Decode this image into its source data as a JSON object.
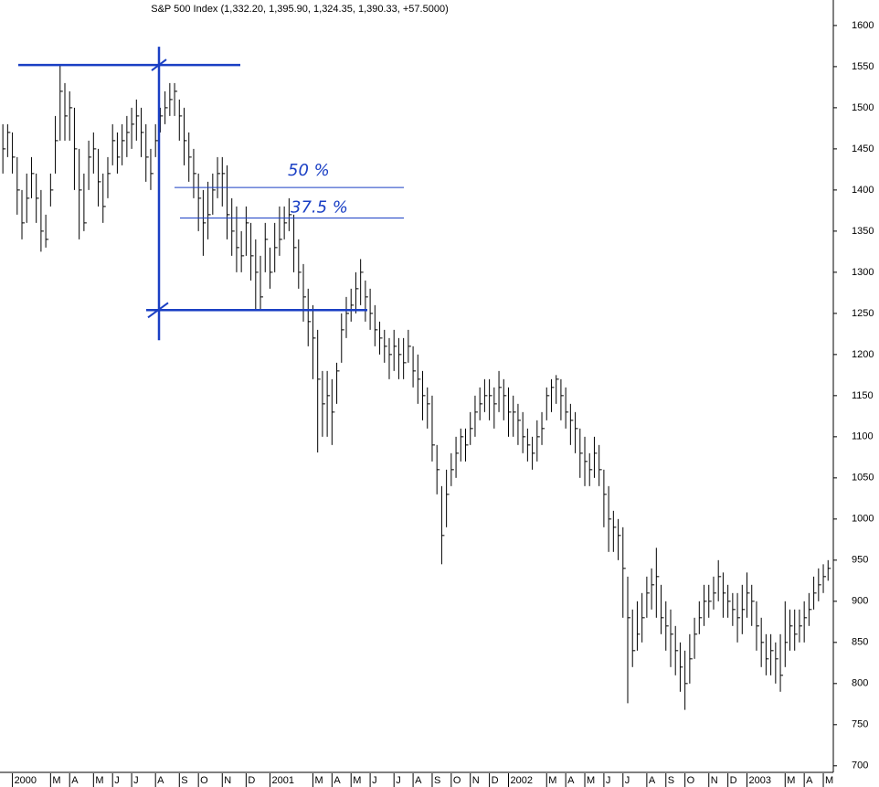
{
  "chart_data": {
    "type": "ohlc",
    "title": "S&P 500 Index (1,332.20, 1,395.90, 1,324.35, 1,390.33, +57.5000)",
    "color": "#000000",
    "ylim": [
      692,
      1631
    ],
    "yticks": [
      700,
      750,
      800,
      850,
      900,
      950,
      1000,
      1050,
      1100,
      1150,
      1200,
      1250,
      1300,
      1350,
      1400,
      1450,
      1500,
      1550,
      1600
    ],
    "xlim": [
      -0.6,
      174.1
    ],
    "xticks": [
      {
        "value": 2,
        "label": "2000"
      },
      {
        "value": 10,
        "label": "M"
      },
      {
        "value": 14,
        "label": "A"
      },
      {
        "value": 19,
        "label": "M"
      },
      {
        "value": 23,
        "label": "J"
      },
      {
        "value": 27,
        "label": "J"
      },
      {
        "value": 32,
        "label": "A"
      },
      {
        "value": 37,
        "label": "S"
      },
      {
        "value": 41,
        "label": "O"
      },
      {
        "value": 46,
        "label": "N"
      },
      {
        "value": 51,
        "label": "D"
      },
      {
        "value": 56,
        "label": "2001"
      },
      {
        "value": 65,
        "label": "M"
      },
      {
        "value": 69,
        "label": "A"
      },
      {
        "value": 73,
        "label": "M"
      },
      {
        "value": 77,
        "label": "J"
      },
      {
        "value": 82,
        "label": "J"
      },
      {
        "value": 86,
        "label": "A"
      },
      {
        "value": 90,
        "label": "S"
      },
      {
        "value": 94,
        "label": "O"
      },
      {
        "value": 98,
        "label": "N"
      },
      {
        "value": 102,
        "label": "D"
      },
      {
        "value": 106,
        "label": "2002"
      },
      {
        "value": 114,
        "label": "M"
      },
      {
        "value": 118,
        "label": "A"
      },
      {
        "value": 122,
        "label": "M"
      },
      {
        "value": 126,
        "label": "J"
      },
      {
        "value": 130,
        "label": "J"
      },
      {
        "value": 135,
        "label": "A"
      },
      {
        "value": 139,
        "label": "S"
      },
      {
        "value": 143,
        "label": "O"
      },
      {
        "value": 148,
        "label": "N"
      },
      {
        "value": 152,
        "label": "D"
      },
      {
        "value": 156,
        "label": "2003"
      },
      {
        "value": 164,
        "label": "M"
      },
      {
        "value": 168,
        "label": "A"
      },
      {
        "value": 172,
        "label": "M"
      }
    ],
    "high": [
      1480,
      1480,
      1470,
      1440,
      1400,
      1420,
      1440,
      1420,
      1400,
      1370,
      1420,
      1490,
      1552,
      1530,
      1520,
      1500,
      1450,
      1420,
      1460,
      1470,
      1450,
      1420,
      1440,
      1480,
      1470,
      1480,
      1490,
      1500,
      1510,
      1500,
      1480,
      1450,
      1480,
      1500,
      1520,
      1530,
      1530,
      1510,
      1500,
      1470,
      1450,
      1420,
      1400,
      1410,
      1420,
      1440,
      1440,
      1430,
      1390,
      1380,
      1350,
      1380,
      1360,
      1340,
      1320,
      1360,
      1330,
      1360,
      1380,
      1380,
      1390,
      1370,
      1340,
      1310,
      1280,
      1260,
      1230,
      1180,
      1180,
      1170,
      1190,
      1250,
      1270,
      1280,
      1300,
      1316,
      1290,
      1280,
      1260,
      1240,
      1230,
      1220,
      1230,
      1220,
      1220,
      1230,
      1210,
      1200,
      1180,
      1160,
      1150,
      1090,
      1040,
      1060,
      1080,
      1100,
      1110,
      1110,
      1130,
      1150,
      1160,
      1170,
      1170,
      1160,
      1180,
      1170,
      1160,
      1150,
      1140,
      1130,
      1110,
      1100,
      1120,
      1130,
      1160,
      1170,
      1175,
      1170,
      1160,
      1140,
      1130,
      1110,
      1100,
      1080,
      1100,
      1090,
      1060,
      1040,
      1010,
      1000,
      990,
      930,
      890,
      900,
      910,
      930,
      940,
      965,
      920,
      900,
      890,
      870,
      850,
      840,
      860,
      880,
      900,
      920,
      920,
      930,
      950,
      935,
      920,
      910,
      910,
      920,
      935,
      920,
      900,
      880,
      860,
      860,
      850,
      860,
      900,
      890,
      890,
      890,
      900,
      910,
      930,
      940,
      945,
      950
    ],
    "low": [
      1420,
      1440,
      1420,
      1370,
      1340,
      1360,
      1390,
      1360,
      1325,
      1330,
      1380,
      1420,
      1460,
      1460,
      1460,
      1400,
      1340,
      1350,
      1400,
      1420,
      1380,
      1360,
      1390,
      1430,
      1420,
      1430,
      1440,
      1450,
      1460,
      1440,
      1410,
      1400,
      1440,
      1470,
      1480,
      1490,
      1490,
      1460,
      1430,
      1410,
      1390,
      1350,
      1320,
      1340,
      1370,
      1390,
      1380,
      1340,
      1320,
      1300,
      1300,
      1320,
      1290,
      1254,
      1254,
      1300,
      1280,
      1300,
      1320,
      1340,
      1350,
      1300,
      1280,
      1240,
      1210,
      1170,
      1081,
      1100,
      1100,
      1090,
      1140,
      1190,
      1220,
      1240,
      1250,
      1260,
      1240,
      1230,
      1210,
      1200,
      1190,
      1170,
      1180,
      1170,
      1170,
      1190,
      1160,
      1140,
      1120,
      1110,
      1070,
      1030,
      945,
      990,
      1040,
      1050,
      1070,
      1070,
      1090,
      1100,
      1120,
      1130,
      1120,
      1110,
      1130,
      1120,
      1100,
      1100,
      1090,
      1080,
      1070,
      1060,
      1070,
      1090,
      1120,
      1130,
      1140,
      1120,
      1110,
      1090,
      1080,
      1050,
      1040,
      1040,
      1050,
      1040,
      990,
      960,
      960,
      950,
      880,
      776,
      820,
      840,
      850,
      880,
      890,
      880,
      860,
      840,
      820,
      810,
      790,
      768,
      800,
      830,
      860,
      870,
      880,
      890,
      900,
      880,
      880,
      870,
      850,
      860,
      880,
      870,
      840,
      820,
      810,
      810,
      800,
      790,
      820,
      840,
      840,
      850,
      850,
      870,
      890,
      900,
      910,
      925
    ],
    "close": [
      1450,
      1470,
      1440,
      1400,
      1360,
      1390,
      1420,
      1390,
      1350,
      1340,
      1400,
      1460,
      1520,
      1490,
      1500,
      1450,
      1400,
      1360,
      1440,
      1450,
      1410,
      1380,
      1420,
      1460,
      1440,
      1460,
      1470,
      1480,
      1490,
      1470,
      1440,
      1420,
      1460,
      1490,
      1500,
      1510,
      1520,
      1490,
      1460,
      1440,
      1420,
      1390,
      1360,
      1370,
      1400,
      1420,
      1420,
      1370,
      1350,
      1330,
      1320,
      1360,
      1320,
      1300,
      1270,
      1340,
      1300,
      1330,
      1340,
      1360,
      1370,
      1330,
      1300,
      1270,
      1240,
      1220,
      1170,
      1140,
      1150,
      1130,
      1180,
      1230,
      1250,
      1260,
      1280,
      1300,
      1270,
      1250,
      1230,
      1220,
      1210,
      1200,
      1210,
      1200,
      1190,
      1210,
      1180,
      1170,
      1150,
      1140,
      1090,
      1060,
      980,
      1030,
      1060,
      1080,
      1100,
      1090,
      1110,
      1130,
      1140,
      1150,
      1150,
      1140,
      1160,
      1150,
      1130,
      1130,
      1120,
      1100,
      1090,
      1080,
      1100,
      1110,
      1150,
      1160,
      1170,
      1150,
      1130,
      1120,
      1110,
      1080,
      1070,
      1060,
      1080,
      1060,
      1030,
      1000,
      990,
      980,
      940,
      880,
      840,
      860,
      880,
      910,
      920,
      930,
      880,
      870,
      860,
      840,
      820,
      800,
      830,
      860,
      880,
      900,
      900,
      910,
      930,
      910,
      900,
      890,
      880,
      890,
      910,
      900,
      870,
      850,
      830,
      840,
      830,
      810,
      850,
      870,
      860,
      870,
      880,
      890,
      910,
      920,
      930,
      940
    ],
    "annotation_color": "#1a3fc4",
    "levels": [
      1552,
      1254
    ],
    "retracements": [
      {
        "label": "50 %",
        "value": 1403
      },
      {
        "label": "37.5 %",
        "value": 1366
      }
    ]
  }
}
